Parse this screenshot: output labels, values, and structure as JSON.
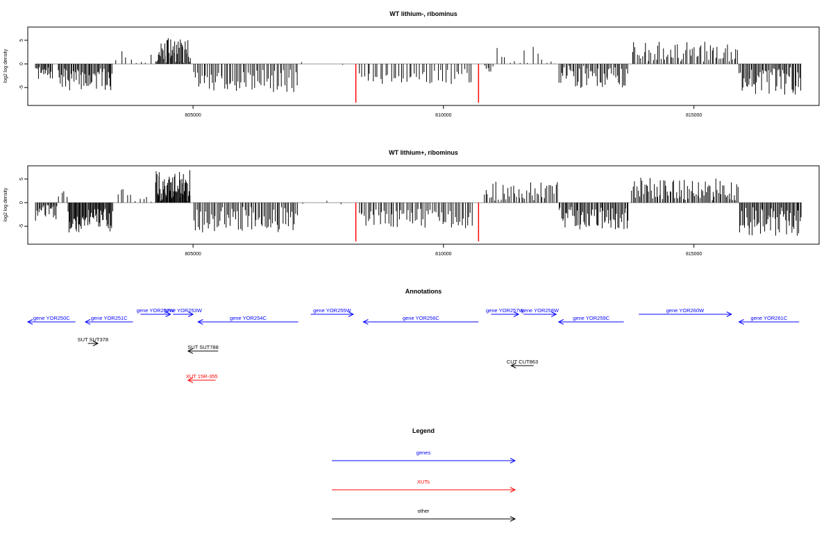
{
  "chart_data": [
    {
      "type": "bar",
      "title": "WT lithium-, ribominus",
      "ylabel": "log2 log density",
      "xlim": [
        801700,
        817500
      ],
      "ylim": [
        -8.5,
        7.5
      ],
      "xticks": [
        805000,
        810000,
        815000
      ],
      "xtick_labels": [
        "805000",
        "810000",
        "815000"
      ],
      "yticks": [
        5,
        0,
        -5
      ],
      "ytick_labels": [
        "5",
        "0",
        "-5"
      ],
      "baseline_color": "#999999",
      "bar_color": "#000000",
      "highlight_color": "#ff0000",
      "highlights": [
        {
          "x": 808250,
          "y": -8.2
        },
        {
          "x": 810700,
          "y": -8.2
        }
      ],
      "regions": [
        {
          "start": 801850,
          "end": 802200,
          "mean": -2.0,
          "amp": 1.3,
          "density": 18
        },
        {
          "start": 802300,
          "end": 803400,
          "mean": -3.3,
          "amp": 2.3,
          "density": 52
        },
        {
          "start": 803450,
          "end": 804200,
          "mean": 1.2,
          "amp": 1.5,
          "density": 8
        },
        {
          "start": 804250,
          "end": 804950,
          "mean": 2.7,
          "amp": 2.8,
          "density": 44
        },
        {
          "start": 805000,
          "end": 807100,
          "mean": -3.6,
          "amp": 2.5,
          "density": 62
        },
        {
          "start": 807100,
          "end": 808150,
          "mean": 0.0,
          "amp": 0.4,
          "density": 2
        },
        {
          "start": 808300,
          "end": 810600,
          "mean": -2.7,
          "amp": 1.6,
          "density": 44
        },
        {
          "start": 810800,
          "end": 811000,
          "mean": -1.0,
          "amp": 0.8,
          "density": 6
        },
        {
          "start": 811000,
          "end": 812300,
          "mean": 1.4,
          "amp": 2.2,
          "density": 14
        },
        {
          "start": 812300,
          "end": 813700,
          "mean": -2.7,
          "amp": 2.4,
          "density": 52
        },
        {
          "start": 813750,
          "end": 815900,
          "mean": 2.6,
          "amp": 2.2,
          "density": 62
        },
        {
          "start": 815900,
          "end": 817150,
          "mean": -3.6,
          "amp": 2.9,
          "density": 54
        }
      ]
    },
    {
      "type": "bar",
      "title": "WT lithium+, ribominus",
      "ylabel": "log2 log density",
      "xlim": [
        801700,
        817500
      ],
      "ylim": [
        -8.5,
        7.5
      ],
      "xticks": [
        805000,
        810000,
        815000
      ],
      "xtick_labels": [
        "805000",
        "810000",
        "815000"
      ],
      "yticks": [
        5,
        0,
        -5
      ],
      "ytick_labels": [
        "5",
        "0",
        "-5"
      ],
      "baseline_color": "#999999",
      "bar_color": "#000000",
      "highlight_color": "#ff0000",
      "highlights": [
        {
          "x": 808250,
          "y": -8.2
        },
        {
          "x": 810700,
          "y": -8.2
        }
      ],
      "regions": [
        {
          "start": 801850,
          "end": 802300,
          "mean": -2.3,
          "amp": 1.8,
          "density": 22
        },
        {
          "start": 802300,
          "end": 802500,
          "mean": 2.0,
          "amp": 0.8,
          "density": 4
        },
        {
          "start": 802500,
          "end": 803400,
          "mean": -3.8,
          "amp": 2.6,
          "density": 58
        },
        {
          "start": 803450,
          "end": 804200,
          "mean": 1.3,
          "amp": 1.6,
          "density": 10
        },
        {
          "start": 804250,
          "end": 804950,
          "mean": 3.6,
          "amp": 3.3,
          "density": 58
        },
        {
          "start": 805000,
          "end": 807100,
          "mean": -3.6,
          "amp": 2.7,
          "density": 72
        },
        {
          "start": 807100,
          "end": 808150,
          "mean": 0.0,
          "amp": 0.4,
          "density": 3
        },
        {
          "start": 808300,
          "end": 810600,
          "mean": -3.3,
          "amp": 2.1,
          "density": 66
        },
        {
          "start": 810800,
          "end": 812300,
          "mean": 2.3,
          "amp": 2.2,
          "density": 44
        },
        {
          "start": 812300,
          "end": 813700,
          "mean": -3.3,
          "amp": 2.4,
          "density": 62
        },
        {
          "start": 813750,
          "end": 815900,
          "mean": 2.9,
          "amp": 2.4,
          "density": 82
        },
        {
          "start": 815900,
          "end": 817150,
          "mean": -3.9,
          "amp": 3.1,
          "density": 60
        }
      ]
    }
  ],
  "annotations": {
    "title": "Annotations",
    "genes_color": "#0000ff",
    "xuts_color": "#ff0000",
    "other_color": "#000000",
    "features": [
      {
        "label": "gene YOR250C",
        "start": 801700,
        "end": 802650,
        "strand": "-",
        "row": 2,
        "kind": "gene"
      },
      {
        "label": "gene YOR251C",
        "start": 802850,
        "end": 803800,
        "strand": "-",
        "row": 2,
        "kind": "gene"
      },
      {
        "label": "gene YOR252W",
        "start": 803950,
        "end": 804550,
        "strand": "+",
        "row": 1,
        "kind": "gene"
      },
      {
        "label": "gene YOR253W",
        "start": 804600,
        "end": 805000,
        "strand": "+",
        "row": 1,
        "kind": "gene"
      },
      {
        "label": "gene YOR254C",
        "start": 805100,
        "end": 807100,
        "strand": "-",
        "row": 2,
        "kind": "gene"
      },
      {
        "label": "gene YOR255W",
        "start": 807350,
        "end": 808200,
        "strand": "+",
        "row": 1,
        "kind": "gene"
      },
      {
        "label": "gene YOR256C",
        "start": 808400,
        "end": 810700,
        "strand": "-",
        "row": 2,
        "kind": "gene"
      },
      {
        "label": "gene YOR257W",
        "start": 810950,
        "end": 811500,
        "strand": "+",
        "row": 1,
        "kind": "gene"
      },
      {
        "label": "gene YOR258W",
        "start": 811600,
        "end": 812250,
        "strand": "+",
        "row": 1,
        "kind": "gene"
      },
      {
        "label": "gene YOR259C",
        "start": 812300,
        "end": 813600,
        "strand": "-",
        "row": 2,
        "kind": "gene"
      },
      {
        "label": "gene YOR260W",
        "start": 813900,
        "end": 815750,
        "strand": "+",
        "row": 1,
        "kind": "gene"
      },
      {
        "label": "gene YOR261C",
        "start": 815900,
        "end": 817100,
        "strand": "-",
        "row": 2,
        "kind": "gene"
      },
      {
        "label": "SUT SUT378",
        "start": 802900,
        "end": 803100,
        "strand": "+",
        "row": 3,
        "kind": "other"
      },
      {
        "label": "SUT SUT788",
        "start": 804900,
        "end": 805500,
        "strand": "-",
        "row": 4,
        "kind": "other"
      },
      {
        "label": "XUT 15R-355",
        "start": 804900,
        "end": 805450,
        "strand": "-",
        "row": 6,
        "kind": "xut"
      },
      {
        "label": "CUT CUT863",
        "start": 811350,
        "end": 811800,
        "strand": "-",
        "row": 5,
        "kind": "other"
      }
    ]
  },
  "legend": {
    "title": "Legend",
    "items": [
      {
        "label": "genes",
        "color": "#0000ff"
      },
      {
        "label": "XUTs",
        "color": "#ff0000"
      },
      {
        "label": "other",
        "color": "#000000"
      }
    ]
  }
}
